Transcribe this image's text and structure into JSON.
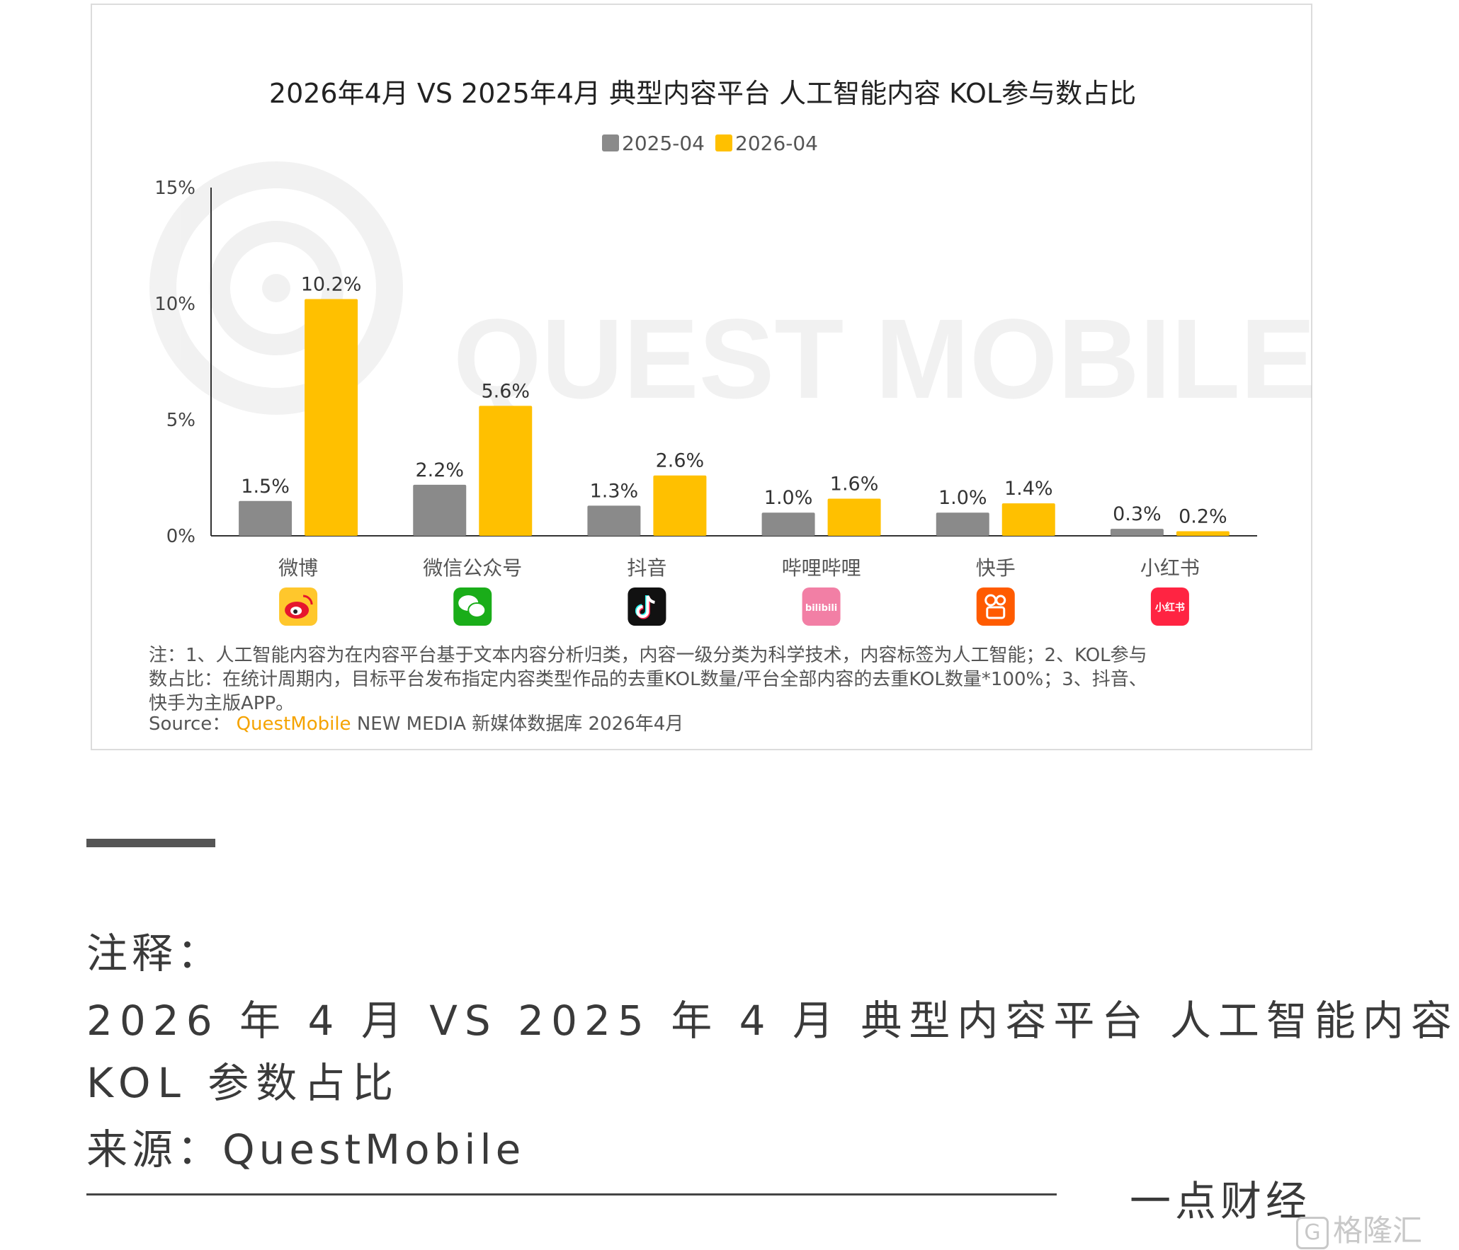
{
  "chart_data": {
    "type": "bar",
    "title": "2026年4月 VS 2025年4月 典型内容平台 人工智能内容 KOL参与数占比",
    "categories": [
      "微博",
      "微信公众号",
      "抖音",
      "哔哩哔哩",
      "快手",
      "小红书"
    ],
    "series": [
      {
        "name": "2025-04",
        "color": "#8a8a8a",
        "values": [
          1.5,
          2.2,
          1.3,
          1.0,
          1.0,
          0.3
        ],
        "labels": [
          "1.5%",
          "2.2%",
          "1.3%",
          "1.0%",
          "1.0%",
          "0.3%"
        ]
      },
      {
        "name": "2026-04",
        "color": "#ffc000",
        "values": [
          10.2,
          5.6,
          2.6,
          1.6,
          1.4,
          0.2
        ],
        "labels": [
          "10.2%",
          "5.6%",
          "2.6%",
          "1.6%",
          "1.4%",
          "0.2%"
        ]
      }
    ],
    "yticks": [
      "0%",
      "5%",
      "10%",
      "15%"
    ],
    "ylim": [
      0,
      15
    ],
    "grid": false,
    "legend": "top-center",
    "watermark": "QUEST MOBILE",
    "platform_icons": [
      "weibo-icon",
      "wechat-icon",
      "douyin-icon",
      "bilibili-icon",
      "kuaishou-icon",
      "xiaohongshu-icon"
    ],
    "icon_texts": {
      "bilibili": "bilibili",
      "xiaohongshu": "小红书"
    }
  },
  "notes": {
    "line1": "注：1、人工智能内容为在内容平台基于文本内容分析归类，内容一级分类为科学技术，内容标签为人工智能；2、KOL参与",
    "line2": "数占比：在统计周期内，目标平台发布指定内容类型作品的去重KOL数量/平台全部内容的去重KOL数量*100%；3、抖音、",
    "line3": "快手为主版APP。",
    "source_prefix": "Source：",
    "source_brand": "QuestMobile",
    "source_rest": "NEW MEDIA 新媒体数据库 2026年4月"
  },
  "caption": {
    "label": "注释：",
    "title_line1": "2026 年 4 月 VS 2025 年 4 月 典型内容平台 人工智能内容",
    "title_line2": "KOL 参数占比",
    "source": "来源：QuestMobile"
  },
  "footer": {
    "brand": "一点财经",
    "badge_glyph": "G",
    "badge_text": "格隆汇"
  }
}
